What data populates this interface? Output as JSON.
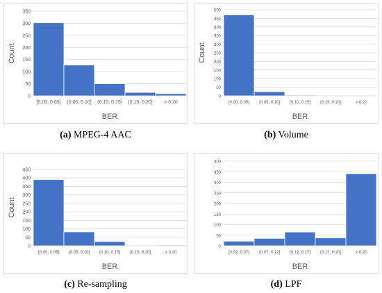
{
  "colors": {
    "bar": "#4472C4",
    "grid": "#d9d9d9",
    "text": "#595959"
  },
  "chart_data": [
    {
      "type": "bar",
      "caption_letter": "(a)",
      "caption_text": "MPEG-4 AAC",
      "categories": [
        "[0.00, 0.05]",
        "(0.05, 0.10]",
        "(0.10, 0.15]",
        "(0.15, 0.20]",
        "> 0.20"
      ],
      "values": [
        302,
        127,
        50,
        14,
        9
      ],
      "xlabel": "BER",
      "ylabel": "Count",
      "ylim": [
        0,
        350
      ],
      "yticks": [
        0,
        50,
        100,
        150,
        200,
        250,
        300,
        350
      ],
      "grid": true
    },
    {
      "type": "bar",
      "caption_letter": "(b)",
      "caption_text": "Volume",
      "categories": [
        "[0.00, 0.05]",
        "(0.05, 0.10]",
        "(0.10, 0.15]",
        "(0.15, 0.20]",
        "> 0.20"
      ],
      "values": [
        470,
        24,
        4,
        0,
        0
      ],
      "xlabel": "BER",
      "ylabel": "Count",
      "ylim": [
        0,
        500
      ],
      "yticks": [
        0,
        50,
        100,
        150,
        200,
        250,
        300,
        350,
        400,
        450,
        500
      ],
      "grid": true
    },
    {
      "type": "bar",
      "caption_letter": "(c)",
      "caption_text": "Re-sampling",
      "categories": [
        "[0.00, 0.05]",
        "(0.05, 0.10]",
        "(0.10, 0.15]",
        "(0.15, 0.20]",
        "> 0.20"
      ],
      "values": [
        390,
        82,
        25,
        0,
        4
      ],
      "xlabel": "BER",
      "ylabel": "Count",
      "ylim": [
        0,
        450
      ],
      "yticks": [
        0,
        50,
        100,
        150,
        200,
        250,
        300,
        350,
        400,
        450
      ],
      "grid": true
    },
    {
      "type": "bar",
      "caption_letter": "(d)",
      "caption_text": "LPF",
      "categories": [
        "[0.02, 0.07]",
        "(0.07, 0.12]",
        "(0.12, 0.17]",
        "(0.17, 0.20]",
        "> 0.20"
      ],
      "values": [
        22,
        35,
        65,
        37,
        340
      ],
      "xlabel": "BER",
      "ylabel": "",
      "ylim": [
        0,
        400
      ],
      "yticks": [
        0,
        50,
        100,
        150,
        200,
        250,
        300,
        350,
        400
      ],
      "grid": true
    }
  ]
}
